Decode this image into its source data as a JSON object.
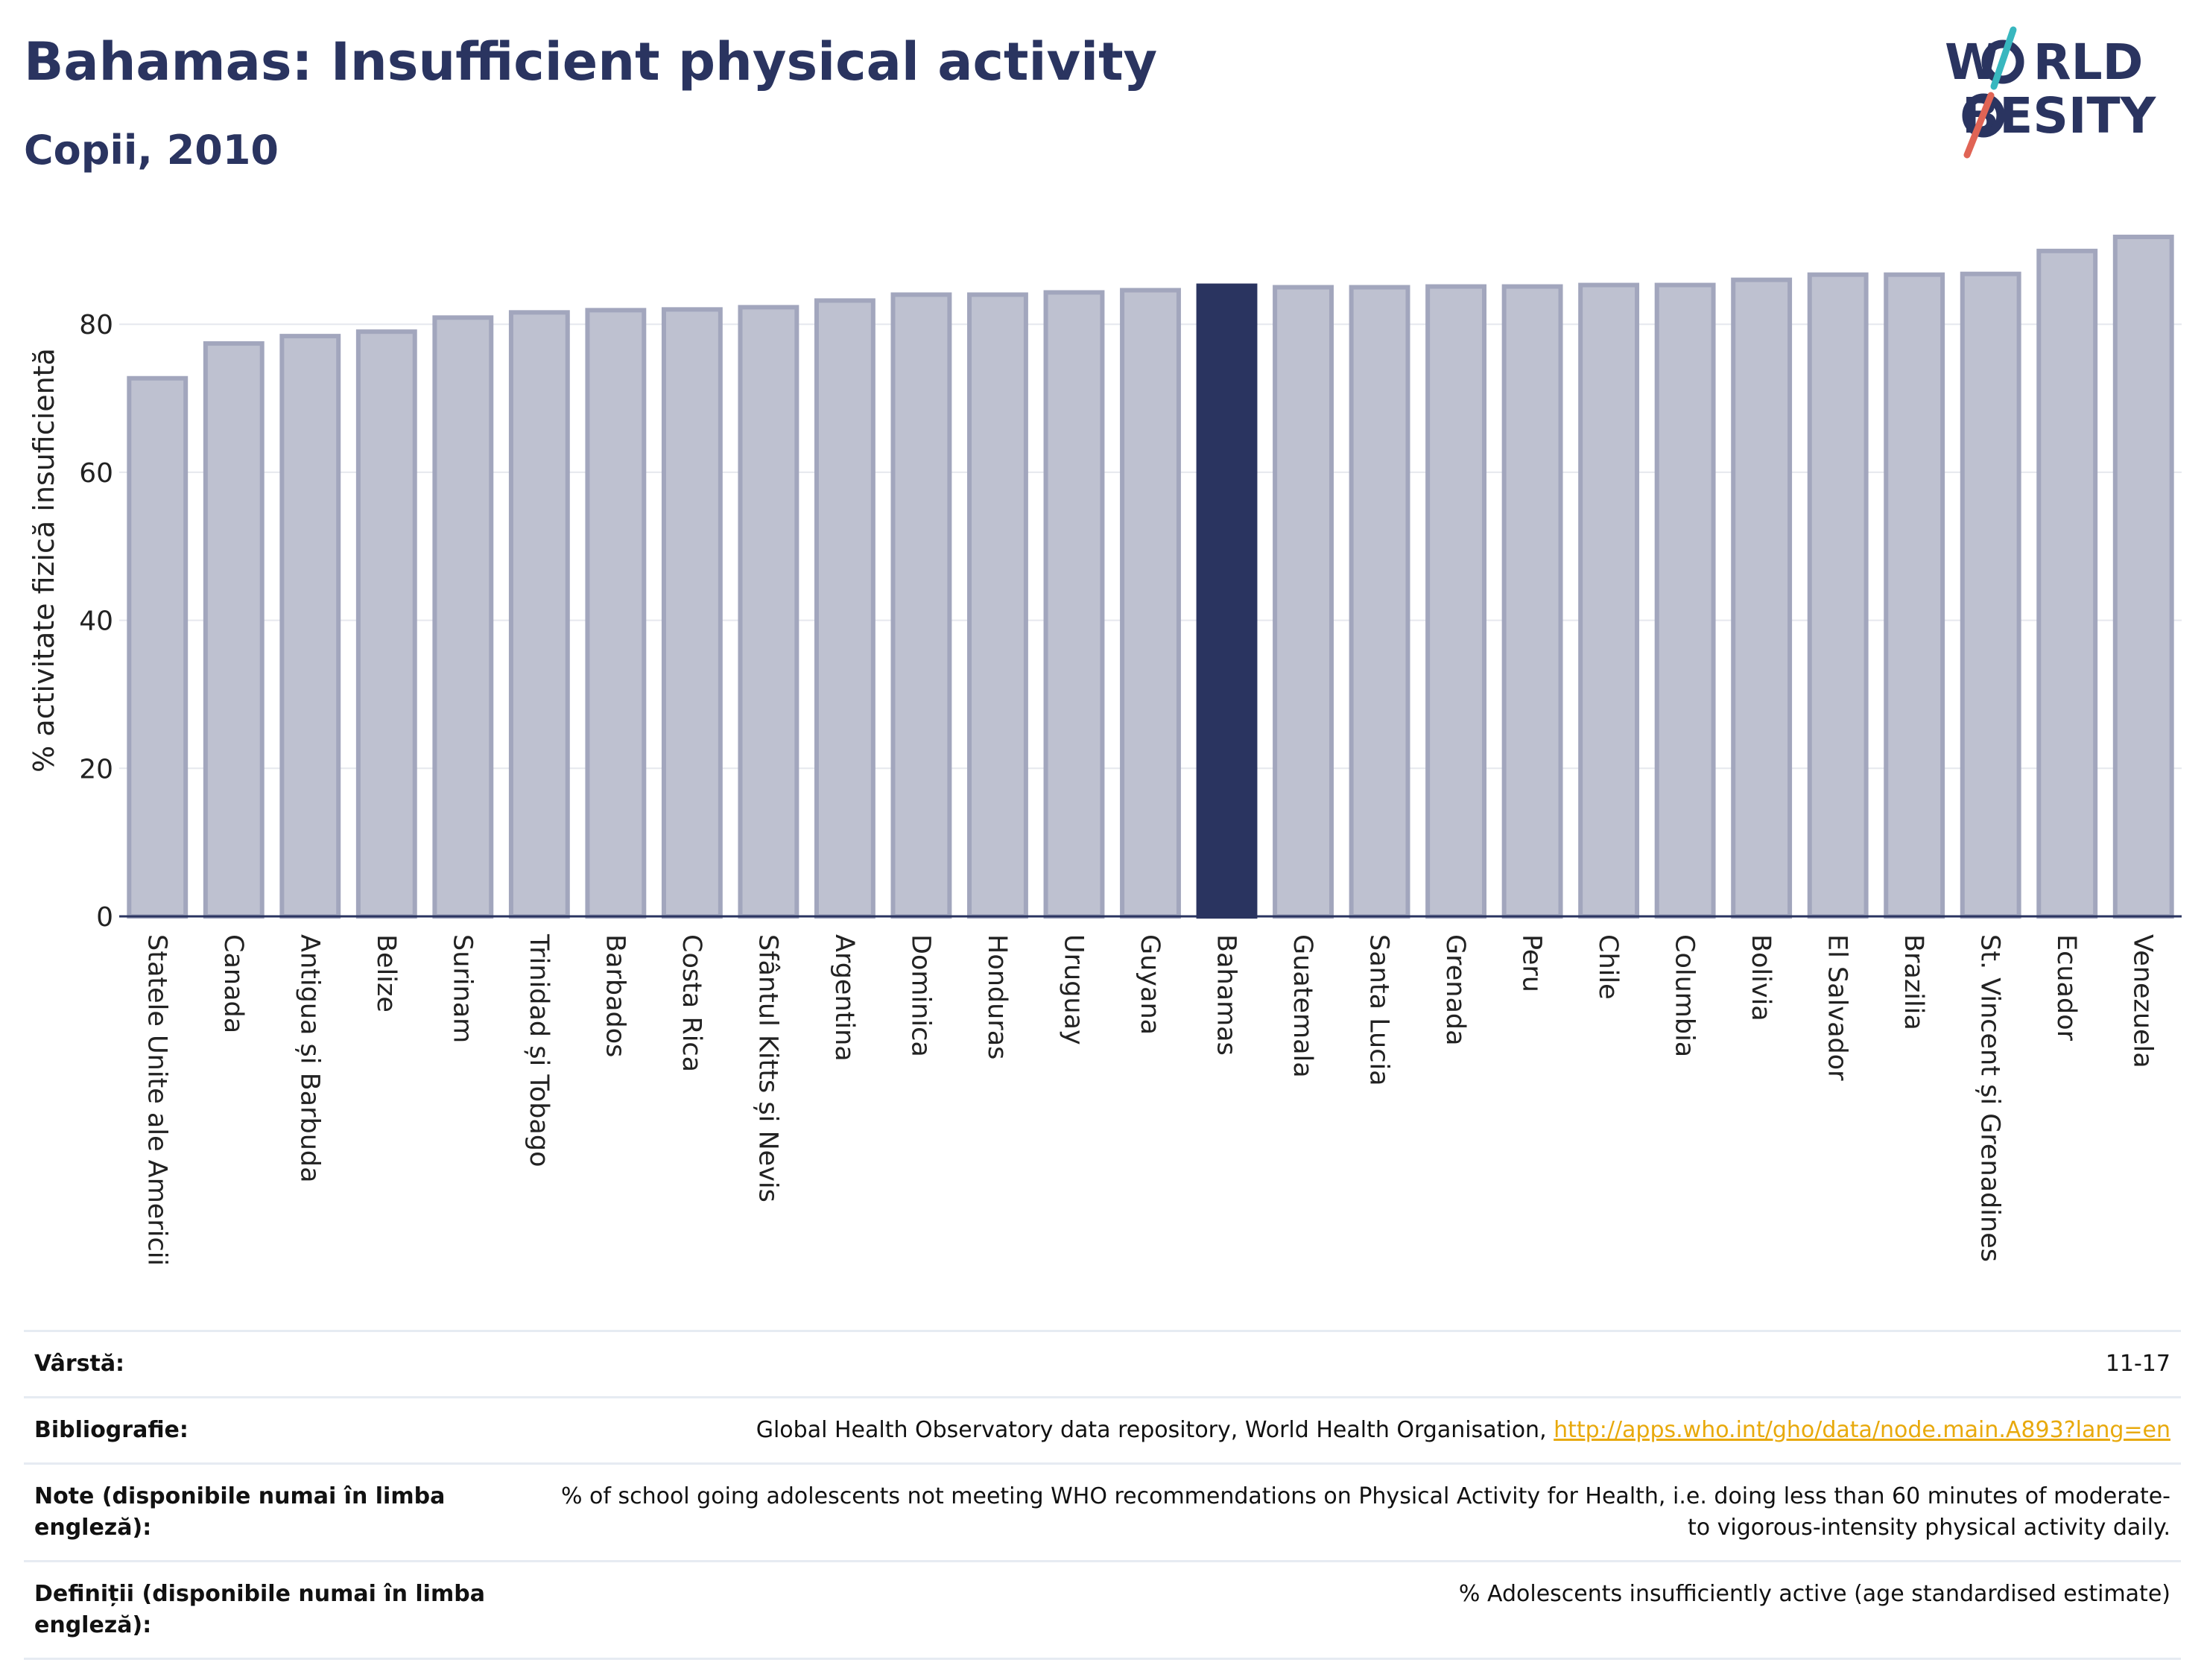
{
  "header": {
    "title": "Bahamas: Insufficient physical activity",
    "subtitle": "Copii, 2010"
  },
  "logo": {
    "line1": "WORLD",
    "line2": "OBESITY",
    "line1_display": "W  RLD",
    "line2_display": " BESITY"
  },
  "colors": {
    "bar_default": "#bec1d0",
    "bar_border": "#a2a6bd",
    "bar_highlight": "#2a3460",
    "title": "#2a3460",
    "link": "#e8a90c",
    "logo_teal": "#38b7bf",
    "logo_coral": "#e06455"
  },
  "chart_data": {
    "type": "bar",
    "ylabel": "% activitate fizică insuficientă",
    "ylim": [
      0,
      92
    ],
    "yticks": [
      0,
      20,
      40,
      60,
      80
    ],
    "grid": true,
    "highlight": "Bahamas",
    "categories": [
      "Statele Unite ale Americii",
      "Canada",
      "Antigua și Barbuda",
      "Belize",
      "Surinam",
      "Trinidad și Tobago",
      "Barbados",
      "Costa Rica",
      "Sfântul Kitts și Nevis",
      "Argentina",
      "Dominica",
      "Honduras",
      "Uruguay",
      "Guyana",
      "Bahamas",
      "Guatemala",
      "Santa Lucia",
      "Grenada",
      "Peru",
      "Chile",
      "Columbia",
      "Bolivia",
      "El Salvador",
      "Brazilia",
      "St. Vincent și Grenadines",
      "Ecuador",
      "Venezuela"
    ],
    "values": [
      72.7,
      77.4,
      78.4,
      79.0,
      80.9,
      81.6,
      81.9,
      82.0,
      82.3,
      83.2,
      84.0,
      84.0,
      84.3,
      84.6,
      85.2,
      85.0,
      85.0,
      85.1,
      85.1,
      85.3,
      85.3,
      86.0,
      86.7,
      86.7,
      86.8,
      89.9,
      91.8
    ]
  },
  "info": {
    "age_label": "Vârstă:",
    "age_value": "11-17",
    "bib_label": "Bibliografie:",
    "bib_text": "Global Health Observatory data repository, World Health Organisation, ",
    "bib_link": "http://apps.who.int/gho/data/node.main.A893?lang=en",
    "notes_label": "Note (disponibile numai în limba engleză):",
    "notes_value": "% of school going adolescents not meeting WHO recommendations on Physical Activity for Health, i.e. doing less than 60 minutes of moderate- to vigorous-intensity physical activity daily.",
    "def_label": "Definiții (disponibile numai în limba engleză):",
    "def_value": "% Adolescents insufficiently active (age standardised estimate)"
  }
}
